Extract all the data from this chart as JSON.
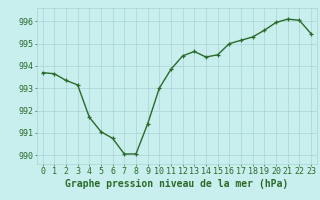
{
  "x": [
    0,
    1,
    2,
    3,
    4,
    5,
    6,
    7,
    8,
    9,
    10,
    11,
    12,
    13,
    14,
    15,
    16,
    17,
    18,
    19,
    20,
    21,
    22,
    23
  ],
  "y": [
    993.7,
    993.65,
    993.35,
    993.15,
    991.7,
    991.05,
    990.75,
    990.05,
    990.05,
    991.4,
    993.0,
    993.85,
    994.45,
    994.65,
    994.4,
    994.5,
    995.0,
    995.15,
    995.3,
    995.6,
    995.95,
    996.1,
    996.05,
    995.45
  ],
  "line_color": "#2a6b2a",
  "marker_color": "#2a6b2a",
  "bg_color": "#c8eeee",
  "grid_color": "#aad4d4",
  "xlabel": "Graphe pression niveau de la mer (hPa)",
  "xlabel_color": "#2a6b2a",
  "tick_color": "#2a6b2a",
  "ylim": [
    989.6,
    996.6
  ],
  "xlim": [
    -0.5,
    23.5
  ],
  "yticks": [
    990,
    991,
    992,
    993,
    994,
    995,
    996
  ],
  "xticks": [
    0,
    1,
    2,
    3,
    4,
    5,
    6,
    7,
    8,
    9,
    10,
    11,
    12,
    13,
    14,
    15,
    16,
    17,
    18,
    19,
    20,
    21,
    22,
    23
  ],
  "xlabel_fontsize": 7.0,
  "tick_fontsize": 6.0,
  "linewidth": 1.0,
  "markersize": 3.0
}
